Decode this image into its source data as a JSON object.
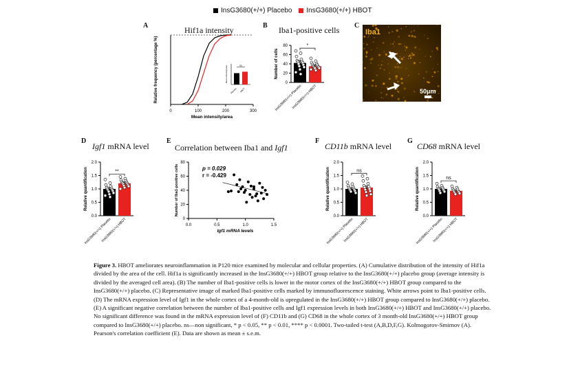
{
  "legend": {
    "placebo_label": "InsG3680(+/+) Placebo",
    "hbot_label": "InsG3680(+/+) HBOT",
    "placebo_color": "#000000",
    "hbot_color": "#e8221f"
  },
  "panels": {
    "A": {
      "letter": "A",
      "title": "Hif1a intensity"
    },
    "B": {
      "letter": "B",
      "title": "Iba1-positive cells"
    },
    "C": {
      "letter": "C",
      "stain_label": "Iba1",
      "scale_label": "50μm"
    },
    "D": {
      "letter": "D",
      "title_gene": "Igf1",
      "title_rest": " mRNA level"
    },
    "E": {
      "letter": "E",
      "title_pre": "Correlation between Iba1 and ",
      "title_gene": "Igf1"
    },
    "F": {
      "letter": "F",
      "title_gene": "CD11b",
      "title_rest": " mRNA level"
    },
    "G": {
      "letter": "G",
      "title_gene": "CD68",
      "title_rest": " mRNA level"
    }
  },
  "chart_data": [
    {
      "panel": "A",
      "type": "line",
      "xlabel": "Mean intensity/area",
      "ylabel": "Relative frequency (percentage %)",
      "xlim": [
        0,
        300
      ],
      "ylim": [
        0,
        100
      ],
      "xticks": [
        "0",
        "100",
        "200",
        "300"
      ],
      "significance": "****",
      "series": [
        {
          "name": "InsG3680(+/+) Placebo",
          "color": "#000000",
          "x": [
            40,
            60,
            80,
            100,
            120,
            140,
            160,
            180,
            200,
            220
          ],
          "y": [
            0,
            3,
            15,
            40,
            70,
            88,
            96,
            99,
            100,
            100
          ]
        },
        {
          "name": "InsG3680(+/+) HBOT",
          "color": "#e8221f",
          "x": [
            60,
            80,
            100,
            120,
            140,
            160,
            180,
            200,
            220
          ],
          "y": [
            0,
            5,
            20,
            45,
            70,
            87,
            95,
            99,
            100
          ]
        }
      ],
      "inset": {
        "ylabel": "Mean intensity/area",
        "categories": [
          "Placebo",
          "HBOT"
        ],
        "values": [
          55,
          62
        ],
        "sig": "ns",
        "ylim": [
          0,
          100
        ]
      }
    },
    {
      "panel": "B",
      "type": "bar",
      "ylabel": "Number of cells",
      "ylim": [
        0,
        80
      ],
      "yticks": [
        "0",
        "20",
        "40",
        "60",
        "80"
      ],
      "categories": [
        "InsG3680(+/+) Placebo",
        "InsG3680(+/+) HBOT"
      ],
      "values": [
        42,
        35
      ],
      "errors": [
        5,
        3
      ],
      "significance": "*",
      "points": [
        [
          68,
          63,
          56,
          50,
          47,
          45,
          44,
          42,
          40,
          38,
          35,
          33,
          28,
          22,
          18
        ],
        [
          52,
          46,
          43,
          41,
          39,
          38,
          36,
          35,
          34,
          33,
          32,
          31,
          30,
          28,
          26
        ]
      ]
    },
    {
      "panel": "D",
      "type": "bar",
      "ylabel": "Relative quantification",
      "ylim": [
        0,
        2.0
      ],
      "yticks": [
        "0.0",
        "0.5",
        "1.0",
        "1.5",
        "2.0"
      ],
      "categories": [
        "InsG3680(+/+) Placebo",
        "InsG3680(+/+) HBOT"
      ],
      "values": [
        1.0,
        1.21
      ],
      "errors": [
        0.05,
        0.05
      ],
      "significance": "**",
      "points": [
        [
          1.35,
          1.22,
          1.15,
          1.1,
          1.05,
          1.02,
          1.0,
          0.97,
          0.95,
          0.92,
          0.9,
          0.85,
          0.8,
          0.75,
          0.7
        ],
        [
          1.45,
          1.38,
          1.33,
          1.3,
          1.26,
          1.24,
          1.22,
          1.2,
          1.18,
          1.15,
          1.12,
          1.1,
          1.05,
          1.0
        ]
      ]
    },
    {
      "panel": "E",
      "type": "scatter",
      "xlabel": "Igf1 mRNA levels",
      "ylabel": "Number of Iba1-positive cells",
      "xlim": [
        0.0,
        1.5
      ],
      "ylim": [
        0,
        80
      ],
      "xticks": [
        "0.0",
        "0.5",
        "1.0",
        "1.5"
      ],
      "yticks": [
        "0",
        "20",
        "40",
        "60",
        "80"
      ],
      "annotation_p": "p = 0.029",
      "annotation_r": "r = -0.429",
      "x": [
        0.7,
        0.8,
        0.85,
        0.9,
        0.95,
        1.0,
        1.05,
        1.1,
        1.15,
        1.2,
        1.25,
        1.3,
        1.35,
        0.75,
        0.88,
        0.98,
        1.08,
        1.12,
        1.18,
        1.22,
        1.28,
        1.32,
        1.38,
        1.02,
        0.92,
        1.15
      ],
      "y": [
        38,
        62,
        48,
        55,
        45,
        40,
        52,
        46,
        42,
        35,
        50,
        44,
        40,
        39,
        38,
        37,
        34,
        30,
        32,
        25,
        36,
        28,
        34,
        23,
        42,
        45
      ],
      "fit": {
        "x": [
          0.6,
          1.4
        ],
        "y": [
          51,
          35
        ]
      }
    },
    {
      "panel": "F",
      "type": "bar",
      "ylabel": "Relative quantification",
      "ylim": [
        0,
        2.0
      ],
      "yticks": [
        "0.0",
        "0.5",
        "1.0",
        "1.5",
        "2.0"
      ],
      "categories": [
        "InsG3680(+/+) Placebo",
        "InsG3680(+/+) HBOT"
      ],
      "values": [
        1.0,
        1.05
      ],
      "errors": [
        0.04,
        0.06
      ],
      "significance": "ns",
      "points": [
        [
          1.25,
          1.18,
          1.12,
          1.08,
          1.05,
          1.02,
          1.0,
          0.97,
          0.95,
          0.92,
          0.9,
          0.85
        ],
        [
          1.48,
          1.38,
          1.3,
          1.2,
          1.12,
          1.08,
          1.05,
          1.0,
          0.97,
          0.92,
          0.88,
          0.8,
          0.75
        ]
      ]
    },
    {
      "panel": "G",
      "type": "bar",
      "ylabel": "Relative quantification",
      "ylim": [
        0,
        2.0
      ],
      "yticks": [
        "0.0",
        "0.5",
        "1.0",
        "1.5",
        "2.0"
      ],
      "categories": [
        "InsG3680(+/+) Placebo",
        "InsG3680(+/+) HBOT"
      ],
      "values": [
        1.0,
        0.93
      ],
      "errors": [
        0.04,
        0.03
      ],
      "significance": "ns",
      "points": [
        [
          1.2,
          1.12,
          1.08,
          1.05,
          1.02,
          1.0,
          0.98,
          0.95,
          0.92,
          0.9,
          0.85
        ],
        [
          1.1,
          1.05,
          1.0,
          0.98,
          0.95,
          0.92,
          0.9,
          0.88,
          0.85,
          0.83,
          0.8
        ]
      ]
    }
  ],
  "caption": {
    "figure_label": "Figure 3.",
    "body": "HBOT ameliorates neuroinflammation in P120 mice examined by molecular and cellular properties. (A) Cumulative distribution of the intensity of Hif1a divided by the area of the cell. Hif1a is significantly increased in the InsG3680(+/+) HBOT group relative to the InsG3680(+/+) placebo group (average intensity is divided by the averaged cell area). (B) The number of Iba1-positive cells is lower in the motor cortex of the InsG3680(+/+) HBOT group compared to the InsG3680(+/+) placebo. (C) Representative image of marked Iba1-positive cells marked by immunofluorescence staining. White arrows point to Iba1-positive cells. (D) The mRNA expression level of Igf1 in the whole cortex of a 4-month-old is upregulated in the InsG3680(+/+) HBOT group compared to InsG3680(+/+) placebo. (E) A significant negative correlation between the number of Iba1-positive cells and Igf1 expression levels in both InsG3680(+/+) HBOT and InsG3680(+/+) placebo. No significant difference was found in the mRNA expression level of (F) CD11b and (G) CD68 in the whole cortex of 3 month-old InsG3680(+/+) HBOT group compared to InsG3680(+/+) placebo. ns—non significant, * p < 0.05, ** p < 0.01, **** p < 0.0001. Two-tailed t-test (A,B,D,F,G). Kolmogorov-Smirnov (A). Pearson's correlation coefficient (E). Data are shown as mean ± s.e.m."
  }
}
